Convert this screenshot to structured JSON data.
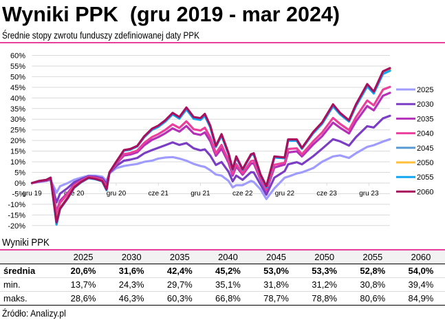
{
  "chart_data": {
    "type": "line",
    "title": "Wyniki PPK  (gru 2019 - mar 2024)",
    "subtitle": "Średnie stopy zwrotu funduszy zdefiniowanej daty PPK",
    "xlabel": "",
    "ylabel": "",
    "ylim": [
      -20,
      60
    ],
    "xlim": [
      "2019-12-01",
      "2024-03-01"
    ],
    "grid": true,
    "legend": "right",
    "yticks": [
      {
        "value": 60,
        "label": "60%"
      },
      {
        "value": 55,
        "label": "55%"
      },
      {
        "value": 50,
        "label": "50%"
      },
      {
        "value": 45,
        "label": "45%"
      },
      {
        "value": 40,
        "label": "40%"
      },
      {
        "value": 35,
        "label": "35%"
      },
      {
        "value": 30,
        "label": "30%"
      },
      {
        "value": 25,
        "label": "25%"
      },
      {
        "value": 20,
        "label": "20%"
      },
      {
        "value": 15,
        "label": "15%"
      },
      {
        "value": 10,
        "label": "10%"
      },
      {
        "value": 5,
        "label": "5%"
      },
      {
        "value": 0,
        "label": "0%"
      },
      {
        "value": -5,
        "label": "-5%"
      },
      {
        "value": -10,
        "label": "-10%"
      },
      {
        "value": -15,
        "label": "-15%"
      },
      {
        "value": -20,
        "label": "-20%"
      }
    ],
    "xticks": [
      {
        "date": "2019-12-01",
        "label": "gru 19"
      },
      {
        "date": "2020-06-01",
        "label": "cze 20"
      },
      {
        "date": "2020-12-01",
        "label": "gru 20"
      },
      {
        "date": "2021-06-01",
        "label": "cze 21"
      },
      {
        "date": "2021-12-01",
        "label": "gru 21"
      },
      {
        "date": "2022-06-01",
        "label": "cze 22"
      },
      {
        "date": "2022-12-01",
        "label": "gru 22"
      },
      {
        "date": "2023-06-01",
        "label": "cze 23"
      },
      {
        "date": "2023-12-01",
        "label": "gru 23"
      }
    ],
    "dates": [
      "2019-12-01",
      "2020-01-02",
      "2020-02-03",
      "2020-02-21",
      "2020-03-16",
      "2020-04-01",
      "2020-05-04",
      "2020-06-01",
      "2020-07-01",
      "2020-08-03",
      "2020-09-01",
      "2020-10-01",
      "2020-10-20",
      "2020-11-02",
      "2020-12-01",
      "2021-01-04",
      "2021-02-01",
      "2021-03-01",
      "2021-04-01",
      "2021-05-04",
      "2021-06-01",
      "2021-07-01",
      "2021-08-02",
      "2021-09-01",
      "2021-10-01",
      "2021-11-02",
      "2021-12-01",
      "2021-12-20",
      "2022-01-13",
      "2022-02-07",
      "2022-03-01",
      "2022-04-01",
      "2022-04-19",
      "2022-05-04",
      "2022-06-01",
      "2022-07-07",
      "2022-07-19",
      "2022-08-18",
      "2022-09-13",
      "2022-10-17",
      "2022-12-01",
      "2022-12-16",
      "2023-01-23",
      "2023-02-15",
      "2023-04-03",
      "2023-05-11",
      "2023-06-28",
      "2023-07-28",
      "2023-09-06",
      "2023-10-06",
      "2023-11-24",
      "2023-12-22",
      "2024-02-01",
      "2024-03-01"
    ],
    "series": [
      {
        "name": "2025",
        "color": "#a09cff",
        "values": [
          0,
          0.5,
          1.0,
          1.5,
          -4.5,
          -1.5,
          0.0,
          1.5,
          2.5,
          3.5,
          3.5,
          3.0,
          1.0,
          4.5,
          7.0,
          8.0,
          8.5,
          9.0,
          10.0,
          10.5,
          11.5,
          12.0,
          12.2,
          11.5,
          10.5,
          9.0,
          8.0,
          7.6,
          6.0,
          4.0,
          3.5,
          1.0,
          -2.0,
          -1.0,
          -1.0,
          1.0,
          0.5,
          -3.0,
          -7.5,
          -2.5,
          2.5,
          3.0,
          4.5,
          5.0,
          7.0,
          10.0,
          12.5,
          13.0,
          11.8,
          14.0,
          17.0,
          17.8,
          19.5,
          20.6
        ]
      },
      {
        "name": "2030",
        "color": "#7b3dc4",
        "values": [
          0,
          0.7,
          1.2,
          1.8,
          -9.1,
          -5.0,
          -2.3,
          0.3,
          1.8,
          3.2,
          3.0,
          2.3,
          -0.3,
          4.7,
          8.0,
          10.5,
          11.0,
          11.8,
          14.0,
          15.5,
          16.6,
          17.8,
          19.1,
          17.9,
          18.8,
          16.3,
          15.4,
          15.8,
          12.9,
          8.5,
          9.9,
          5.3,
          0.8,
          3.5,
          1.5,
          5.1,
          5.0,
          -0.7,
          -5.5,
          2.5,
          5.6,
          8.8,
          9.8,
          8.8,
          12.6,
          16.1,
          20.6,
          19.6,
          17.6,
          21.6,
          26.7,
          26.1,
          30.4,
          31.6
        ]
      },
      {
        "name": "2035",
        "color": "#b530b8",
        "values": [
          0,
          0.8,
          1.3,
          2.2,
          -13.6,
          -8.3,
          -4.6,
          -0.8,
          1.2,
          2.9,
          2.5,
          1.7,
          -1.6,
          4.8,
          9.0,
          12.9,
          13.4,
          14.5,
          17.8,
          20.3,
          21.6,
          23.4,
          25.7,
          24.2,
          26.8,
          23.3,
          22.6,
          23.8,
          19.7,
          12.8,
          16.2,
          9.5,
          3.5,
          7.8,
          3.9,
          9.1,
          9.3,
          1.6,
          -3.6,
          7.3,
          8.7,
          14.4,
          14.9,
          12.5,
          18.1,
          22.0,
          28.4,
          26.0,
          23.3,
          29.0,
          36.2,
          34.2,
          41.0,
          42.4
        ]
      },
      {
        "name": "2040",
        "color": "#ea3f9a",
        "values": [
          0,
          0.9,
          1.4,
          2.2,
          -14.9,
          -9.3,
          -5.2,
          -1.1,
          1.0,
          2.8,
          2.4,
          1.5,
          -2.0,
          4.9,
          9.2,
          13.6,
          14.1,
          15.3,
          18.9,
          21.6,
          23.0,
          25.0,
          27.6,
          25.9,
          29.0,
          25.3,
          24.7,
          26.0,
          21.5,
          14.0,
          17.9,
          10.6,
          4.3,
          9.0,
          4.6,
          10.3,
          10.5,
          2.2,
          -3.1,
          8.6,
          9.5,
          16.0,
          16.3,
          13.5,
          19.6,
          23.7,
          30.6,
          27.8,
          24.9,
          31.0,
          38.8,
          36.5,
          43.9,
          45.2
        ]
      },
      {
        "name": "2045",
        "color": "#5b9bd5",
        "values": [
          0,
          1.0,
          1.5,
          2.5,
          -18.1,
          -11.7,
          -6.8,
          -1.9,
          0.6,
          2.5,
          2.0,
          1.1,
          -2.9,
          5.0,
          9.9,
          15.3,
          15.8,
          17.3,
          21.6,
          25.1,
          26.5,
          29.0,
          32.4,
          30.4,
          34.8,
          30.3,
          29.8,
          31.8,
          26.4,
          17.1,
          22.4,
          13.6,
          6.2,
          12.1,
          6.3,
          13.1,
          13.6,
          3.8,
          -1.7,
          12.1,
          11.7,
          20.0,
          20.0,
          16.2,
          23.5,
          28.0,
          36.3,
          32.4,
          29.0,
          36.3,
          45.6,
          42.2,
          51.5,
          53.0
        ]
      },
      {
        "name": "2050",
        "color": "#ffbf3a",
        "values": [
          0,
          1.0,
          1.5,
          2.5,
          -18.2,
          -11.8,
          -6.9,
          -1.9,
          0.5,
          2.5,
          2.0,
          1.0,
          -2.9,
          5.0,
          9.9,
          15.4,
          15.9,
          17.3,
          21.8,
          25.2,
          26.7,
          29.2,
          32.6,
          30.6,
          35.0,
          30.6,
          30.1,
          32.0,
          26.6,
          17.2,
          22.6,
          13.7,
          6.3,
          12.2,
          6.4,
          13.3,
          13.7,
          3.9,
          -1.6,
          12.2,
          11.8,
          20.2,
          20.2,
          16.3,
          23.7,
          28.1,
          36.5,
          32.6,
          29.2,
          36.5,
          45.9,
          42.5,
          51.8,
          53.3
        ]
      },
      {
        "name": "2055",
        "color": "#12a5f0",
        "values": [
          0,
          1.0,
          1.5,
          2.5,
          -19.5,
          -12.3,
          -7.3,
          -2.3,
          0.3,
          2.3,
          1.8,
          0.8,
          -3.4,
          4.8,
          9.9,
          15.2,
          15.7,
          17.2,
          21.6,
          25.0,
          26.4,
          28.9,
          32.3,
          30.3,
          34.6,
          30.2,
          29.7,
          31.6,
          26.2,
          17.0,
          22.3,
          13.5,
          6.2,
          12.0,
          6.2,
          13.1,
          13.5,
          3.7,
          -2.0,
          12.0,
          11.7,
          19.9,
          19.9,
          16.1,
          23.4,
          27.8,
          36.1,
          32.3,
          28.9,
          36.2,
          45.4,
          42.1,
          51.3,
          52.8
        ]
      },
      {
        "name": "2060",
        "color": "#a8105e",
        "values": [
          0,
          1.0,
          1.5,
          2.5,
          -18.5,
          -12.0,
          -7.0,
          -2.0,
          0.5,
          2.5,
          2.0,
          1.0,
          -3.0,
          5.0,
          10.0,
          15.5,
          16.0,
          17.5,
          22.0,
          25.5,
          27.0,
          29.5,
          33.0,
          31.0,
          35.5,
          31.0,
          30.5,
          32.5,
          27.0,
          17.5,
          23.0,
          14.0,
          6.5,
          12.5,
          6.5,
          13.5,
          14.0,
          4.0,
          -1.5,
          12.5,
          12.0,
          20.5,
          20.5,
          16.5,
          24.0,
          28.5,
          37.0,
          33.0,
          29.5,
          37.0,
          46.5,
          43.0,
          52.5,
          54.0
        ]
      }
    ]
  },
  "accent_color": "#e8409a",
  "table": {
    "caption": "Wyniki PPK",
    "columns": [
      "2025",
      "2030",
      "2035",
      "2040",
      "2045",
      "2050",
      "2055",
      "2060"
    ],
    "rows": [
      {
        "label": "średnia",
        "values": [
          "20,6%",
          "31,6%",
          "42,4%",
          "45,2%",
          "53,0%",
          "53,3%",
          "52,8%",
          "54,0%"
        ]
      },
      {
        "label": "min.",
        "values": [
          "13,7%",
          "24,3%",
          "29,7%",
          "35,1%",
          "31,8%",
          "31,2%",
          "30,8%",
          "39,4%"
        ]
      },
      {
        "label": "maks.",
        "values": [
          "28,6%",
          "46,3%",
          "60,3%",
          "66,8%",
          "78,7%",
          "78,8%",
          "80,6%",
          "84,9%"
        ]
      }
    ]
  },
  "source": "Źródło: Analizy.pl"
}
